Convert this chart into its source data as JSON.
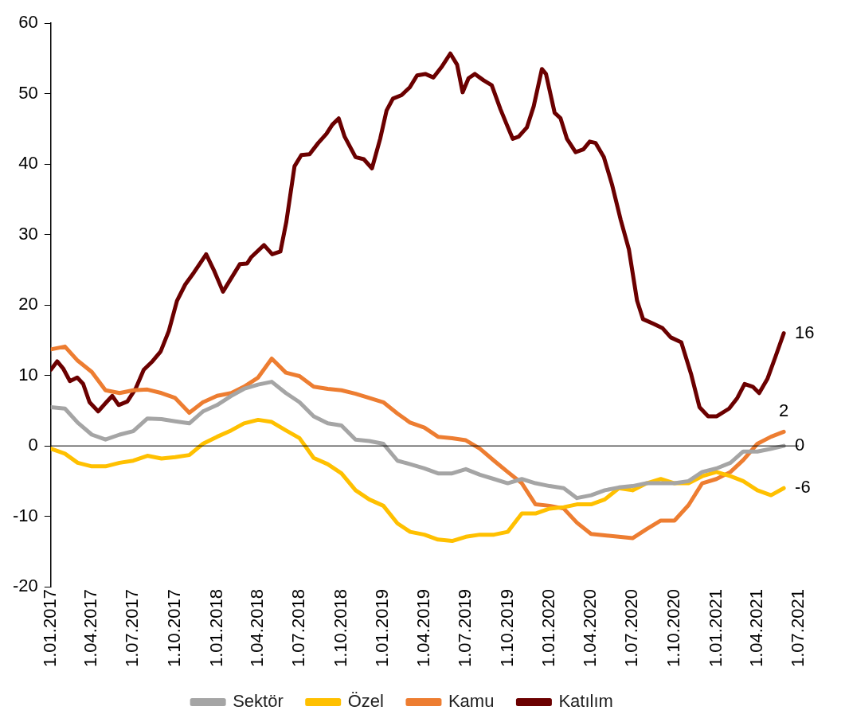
{
  "chart_data": {
    "type": "line",
    "x": [
      "2017-01-01",
      "2017-02-01",
      "2017-03-01",
      "2017-04-01",
      "2017-05-01",
      "2017-06-01",
      "2017-07-01",
      "2017-08-01",
      "2017-09-01",
      "2017-10-01",
      "2017-11-01",
      "2017-12-01",
      "2018-01-01",
      "2018-02-01",
      "2018-03-01",
      "2018-04-01",
      "2018-05-01",
      "2018-06-01",
      "2018-07-01",
      "2018-08-01",
      "2018-09-01",
      "2018-10-01",
      "2018-11-01",
      "2018-12-01",
      "2019-01-01",
      "2019-02-01",
      "2019-03-01",
      "2019-04-01",
      "2019-05-01",
      "2019-06-01",
      "2019-07-01",
      "2019-08-01",
      "2019-09-01",
      "2019-10-01",
      "2019-11-01",
      "2019-12-01",
      "2020-01-01",
      "2020-02-01",
      "2020-03-01",
      "2020-04-01",
      "2020-05-01",
      "2020-06-01",
      "2020-07-01",
      "2020-08-01",
      "2020-09-01",
      "2020-10-01",
      "2020-11-01",
      "2020-12-01",
      "2021-01-01",
      "2021-02-01",
      "2021-03-01",
      "2021-04-01",
      "2021-05-01",
      "2021-05-29"
    ],
    "series": [
      {
        "name": "Sektör",
        "color": "#a5a5a5",
        "values": [
          5.5,
          5.3,
          3.3,
          1.6,
          0.9,
          1.6,
          2.1,
          3.9,
          3.8,
          3.5,
          3.2,
          4.9,
          5.8,
          7.1,
          8.1,
          8.7,
          9.1,
          7.5,
          6.2,
          4.2,
          3.2,
          2.9,
          0.9,
          0.7,
          0.3,
          -2.1,
          -2.6,
          -3.2,
          -3.9,
          -3.9,
          -3.3,
          -4.1,
          -4.7,
          -5.3,
          -4.7,
          -5.3,
          -5.7,
          -6,
          -7.4,
          -7,
          -6.3,
          -5.9,
          -5.7,
          -5.3,
          -5.3,
          -5.3,
          -5,
          -3.7,
          -3.2,
          -2.4,
          -0.8,
          -0.8,
          -0.4,
          0
        ],
        "value_labels": [
          null,
          null,
          null,
          null,
          null,
          null,
          null,
          null,
          null,
          null,
          null,
          null,
          null,
          null,
          null,
          null,
          null,
          null,
          null,
          null,
          null,
          null,
          null,
          null,
          null,
          null,
          null,
          null,
          null,
          null,
          null,
          null,
          null,
          null,
          null,
          null,
          null,
          null,
          null,
          null,
          null,
          null,
          null,
          null,
          null,
          null,
          null,
          null,
          null,
          null,
          null,
          null,
          null,
          "0"
        ]
      },
      {
        "name": "Özel",
        "color": "#ffc000",
        "values": [
          -0.4,
          -1.1,
          -2.4,
          -2.9,
          -2.9,
          -2.4,
          -2.1,
          -1.4,
          -1.8,
          -1.6,
          -1.3,
          0.3,
          1.3,
          2.2,
          3.2,
          3.7,
          3.4,
          2.2,
          1.1,
          -1.7,
          -2.6,
          -3.9,
          -6.3,
          -7.6,
          -8.5,
          -11,
          -12.2,
          -12.6,
          -13.3,
          -13.5,
          -12.9,
          -12.6,
          -12.6,
          -12.2,
          -9.6,
          -9.6,
          -8.9,
          -8.7,
          -8.3,
          -8.3,
          -7.6,
          -6,
          -6.3,
          -5.3,
          -4.7,
          -5.3,
          -5.3,
          -4.3,
          -3.7,
          -4.3,
          -5,
          -6.3,
          -7,
          -6
        ],
        "value_labels": [
          null,
          null,
          null,
          null,
          null,
          null,
          null,
          null,
          null,
          null,
          null,
          null,
          null,
          null,
          null,
          null,
          null,
          null,
          null,
          null,
          null,
          null,
          null,
          null,
          null,
          null,
          null,
          null,
          null,
          null,
          null,
          null,
          null,
          null,
          null,
          null,
          null,
          null,
          null,
          null,
          null,
          null,
          null,
          null,
          null,
          null,
          null,
          null,
          null,
          null,
          null,
          null,
          null,
          "-6"
        ]
      },
      {
        "name": "Kamu",
        "color": "#ed7d31",
        "values": [
          13.7,
          14.1,
          12.1,
          10.5,
          7.9,
          7.5,
          7.9,
          8,
          7.5,
          6.8,
          4.7,
          6.2,
          7.1,
          7.5,
          8.4,
          9.7,
          12.4,
          10.4,
          9.9,
          8.4,
          8.1,
          7.9,
          7.4,
          6.8,
          6.2,
          4.6,
          3.3,
          2.6,
          1.3,
          1.1,
          0.8,
          -0.4,
          -2.1,
          -3.7,
          -5.3,
          -8.3,
          -8.5,
          -8.9,
          -10.9,
          -12.5,
          -12.7,
          -12.9,
          -13.1,
          -11.8,
          -10.6,
          -10.6,
          -8.4,
          -5.3,
          -4.7,
          -3.7,
          -2,
          0.3,
          1.3,
          2
        ],
        "value_labels": [
          null,
          null,
          null,
          null,
          null,
          null,
          null,
          null,
          null,
          null,
          null,
          null,
          null,
          null,
          null,
          null,
          null,
          null,
          null,
          null,
          null,
          null,
          null,
          null,
          null,
          null,
          null,
          null,
          null,
          null,
          null,
          null,
          null,
          null,
          null,
          null,
          null,
          null,
          null,
          null,
          null,
          null,
          null,
          null,
          null,
          null,
          null,
          null,
          null,
          null,
          null,
          null,
          null,
          "2"
        ]
      },
      {
        "name": "Katılım",
        "color": "#6b0000",
        "x": [
          "2017-01-01",
          "2017-01-15",
          "2017-01-28",
          "2017-02-12",
          "2017-02-28",
          "2017-03-13",
          "2017-03-27",
          "2017-04-15",
          "2017-05-03",
          "2017-05-16",
          "2017-05-30",
          "2017-06-18",
          "2017-07-06",
          "2017-07-24",
          "2017-08-12",
          "2017-08-30",
          "2017-09-17",
          "2017-10-05",
          "2017-10-23",
          "2017-11-11",
          "2017-12-08",
          "2017-12-26",
          "2018-01-14",
          "2018-02-02",
          "2018-02-20",
          "2018-03-08",
          "2018-03-17",
          "2018-04-14",
          "2018-05-02",
          "2018-05-20",
          "2018-06-02",
          "2018-06-20",
          "2018-07-05",
          "2018-07-23",
          "2018-08-11",
          "2018-08-29",
          "2018-09-11",
          "2018-09-25",
          "2018-10-08",
          "2018-11-01",
          "2018-11-19",
          "2018-12-07",
          "2018-12-25",
          "2019-01-08",
          "2019-01-22",
          "2019-02-10",
          "2019-02-28",
          "2019-03-16",
          "2019-04-03",
          "2019-04-21",
          "2019-05-10",
          "2019-05-28",
          "2019-06-12",
          "2019-06-24",
          "2019-07-07",
          "2019-07-21",
          "2019-08-09",
          "2019-08-27",
          "2019-09-15",
          "2019-09-29",
          "2019-10-12",
          "2019-10-25",
          "2019-11-12",
          "2019-11-27",
          "2019-12-15",
          "2019-12-24",
          "2020-01-12",
          "2020-01-25",
          "2020-02-08",
          "2020-02-27",
          "2020-03-15",
          "2020-03-29",
          "2020-04-11",
          "2020-04-29",
          "2020-05-17",
          "2020-06-05",
          "2020-06-23",
          "2020-07-11",
          "2020-07-24",
          "2020-08-17",
          "2020-09-05",
          "2020-09-23",
          "2020-10-16",
          "2020-11-07",
          "2020-11-25",
          "2020-12-14",
          "2021-01-02",
          "2021-01-29",
          "2021-02-16",
          "2021-03-04",
          "2021-03-22",
          "2021-04-05",
          "2021-04-23",
          "2021-05-11",
          "2021-05-29"
        ],
        "values": [
          10.8,
          12,
          11,
          9.2,
          9.7,
          8.8,
          6.2,
          4.9,
          6.2,
          7.1,
          5.8,
          6.3,
          8.1,
          10.8,
          12,
          13.4,
          16.3,
          20.6,
          22.9,
          24.6,
          27.2,
          24.8,
          21.9,
          23.9,
          25.8,
          25.9,
          26.8,
          28.5,
          27.2,
          27.6,
          31.8,
          39.7,
          41.3,
          41.4,
          43,
          44.3,
          45.6,
          46.5,
          43.9,
          41,
          40.7,
          39.4,
          43.6,
          47.6,
          49.3,
          49.8,
          50.9,
          52.6,
          52.8,
          52.3,
          53.9,
          55.7,
          54.1,
          50.2,
          52.2,
          52.8,
          51.9,
          51.2,
          47.8,
          45.6,
          43.6,
          43.9,
          45.2,
          48.2,
          53.5,
          52.8,
          47.3,
          46.5,
          43.6,
          41.7,
          42.1,
          43.2,
          43,
          41,
          37.1,
          32.1,
          27.9,
          20.6,
          18,
          17.3,
          16.7,
          15.4,
          14.7,
          10.1,
          5.5,
          4.2,
          4.2,
          5.3,
          6.8,
          8.8,
          8.4,
          7.5,
          9.5,
          12.7,
          16
        ],
        "value_labels": [
          null,
          null,
          null,
          null,
          null,
          null,
          null,
          null,
          null,
          null,
          null,
          null,
          null,
          null,
          null,
          null,
          null,
          null,
          null,
          null,
          null,
          null,
          null,
          null,
          null,
          null,
          null,
          null,
          null,
          null,
          null,
          null,
          null,
          null,
          null,
          null,
          null,
          null,
          null,
          null,
          null,
          null,
          null,
          null,
          null,
          null,
          null,
          null,
          null,
          null,
          null,
          null,
          null,
          null,
          null,
          null,
          null,
          null,
          null,
          null,
          null,
          null,
          null,
          null,
          null,
          null,
          null,
          null,
          null,
          null,
          null,
          null,
          null,
          null,
          null,
          null,
          null,
          null,
          null,
          null,
          null,
          null,
          null,
          null,
          null,
          null,
          null,
          null,
          null,
          null,
          null,
          null,
          null,
          null,
          "16"
        ]
      }
    ],
    "xlim": [
      "2017-01-01",
      "2021-07-01"
    ],
    "xticks": [
      {
        "value": "2017-01-01",
        "label": "1.01.2017"
      },
      {
        "value": "2017-04-01",
        "label": "1.04.2017"
      },
      {
        "value": "2017-07-01",
        "label": "1.07.2017"
      },
      {
        "value": "2017-10-01",
        "label": "1.10.2017"
      },
      {
        "value": "2018-01-01",
        "label": "1.01.2018"
      },
      {
        "value": "2018-04-01",
        "label": "1.04.2018"
      },
      {
        "value": "2018-07-01",
        "label": "1.07.2018"
      },
      {
        "value": "2018-10-01",
        "label": "1.10.2018"
      },
      {
        "value": "2019-01-01",
        "label": "1.01.2019"
      },
      {
        "value": "2019-04-01",
        "label": "1.04.2019"
      },
      {
        "value": "2019-07-01",
        "label": "1.07.2019"
      },
      {
        "value": "2019-10-01",
        "label": "1.10.2019"
      },
      {
        "value": "2020-01-01",
        "label": "1.01.2020"
      },
      {
        "value": "2020-04-01",
        "label": "1.04.2020"
      },
      {
        "value": "2020-07-01",
        "label": "1.07.2020"
      },
      {
        "value": "2020-10-01",
        "label": "1.10.2020"
      },
      {
        "value": "2021-01-01",
        "label": "1.01.2021"
      },
      {
        "value": "2021-04-01",
        "label": "1.04.2021"
      },
      {
        "value": "2021-07-01",
        "label": "1.07.2021"
      }
    ],
    "ylim": [
      -20,
      60
    ],
    "yticks": [
      -20,
      -10,
      0,
      10,
      20,
      30,
      40,
      50,
      60
    ],
    "ref_lines": [
      {
        "axis": "y",
        "value": 0,
        "color": "#000000"
      }
    ],
    "grid": false,
    "legend": "bottom",
    "marker": "none",
    "line_style": "solid"
  }
}
